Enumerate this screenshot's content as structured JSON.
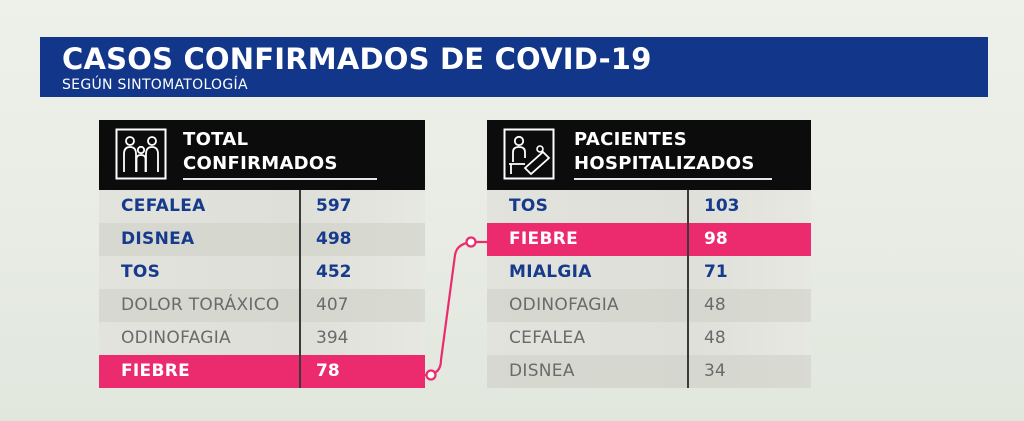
{
  "header": {
    "title": "CASOS CONFIRMADOS DE COVID-19",
    "subtitle": "SEGÚN SINTOMATOLOGÍA"
  },
  "left_panel": {
    "icon": "people-group-icon",
    "title_line1": "TOTAL",
    "title_line2": "CONFIRMADOS",
    "rows": [
      {
        "label": "CEFALEA",
        "value": "597",
        "style": "bold"
      },
      {
        "label": "DISNEA",
        "value": "498",
        "style": "bold"
      },
      {
        "label": "TOS",
        "value": "452",
        "style": "bold"
      },
      {
        "label": "DOLOR TORÁXICO",
        "value": "407",
        "style": "light"
      },
      {
        "label": "ODINOFAGIA",
        "value": "394",
        "style": "light"
      },
      {
        "label": "FIEBRE",
        "value": "78",
        "style": "highlight"
      }
    ]
  },
  "right_panel": {
    "icon": "hospital-bed-icon",
    "title_line1": "PACIENTES",
    "title_line2": "HOSPITALIZADOS",
    "rows": [
      {
        "label": "TOS",
        "value": "103",
        "style": "bold"
      },
      {
        "label": "FIEBRE",
        "value": "98",
        "style": "highlight"
      },
      {
        "label": "MIALGIA",
        "value": "71",
        "style": "bold"
      },
      {
        "label": "ODINOFAGIA",
        "value": "48",
        "style": "light"
      },
      {
        "label": "CEFALEA",
        "value": "48",
        "style": "light"
      },
      {
        "label": "DISNEA",
        "value": "34",
        "style": "light"
      }
    ]
  },
  "colors": {
    "title_bar": "#12368a",
    "header_bg": "#0c0c0c",
    "highlight": "#ec2a6e",
    "bold_text": "#173b8c",
    "light_text": "#6a6a6a"
  }
}
